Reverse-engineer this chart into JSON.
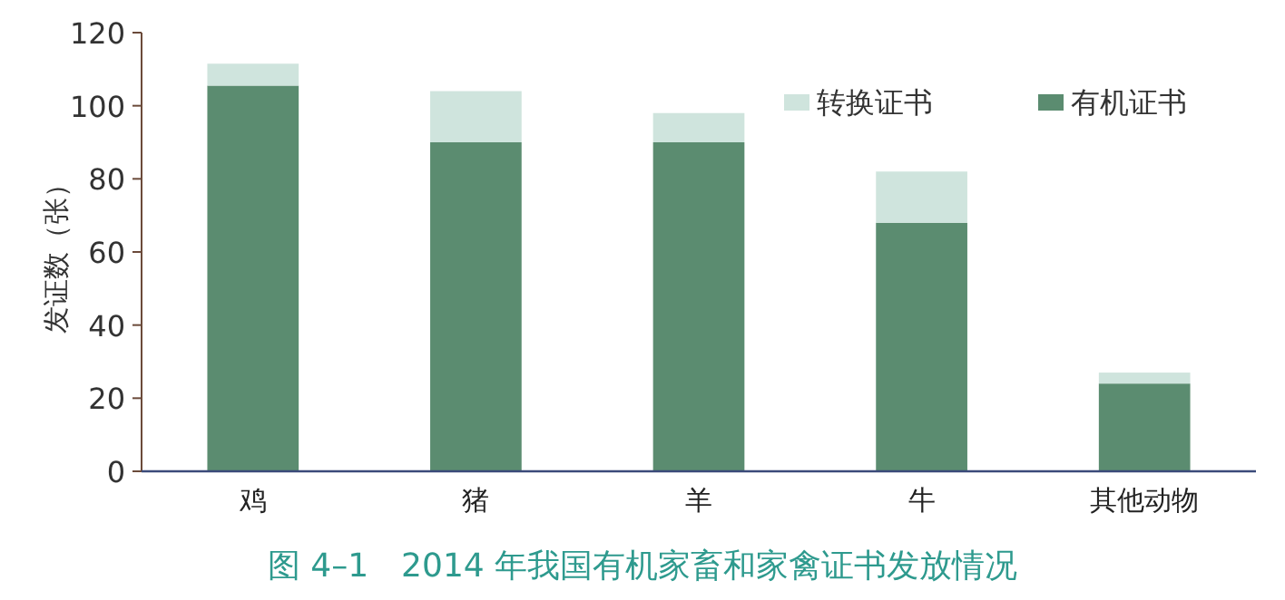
{
  "chart_data": {
    "type": "bar",
    "title": "图 4–1　2014 年我国有机家畜和家禽证书发放情况",
    "ylabel": "发证数（张）",
    "categories": [
      "鸡",
      "猪",
      "羊",
      "牛",
      "其他动物"
    ],
    "stacked": true,
    "series": [
      {
        "name": "有机证书",
        "color": "#5b8c70",
        "values": [
          105.5,
          90,
          90,
          68,
          24
        ]
      },
      {
        "name": "转换证书",
        "color": "#cfe4dd",
        "values": [
          6,
          14,
          8,
          14,
          3
        ]
      }
    ],
    "ylim": [
      0,
      120
    ],
    "yticks": [
      0,
      20,
      40,
      60,
      80,
      100,
      120
    ],
    "grid": false,
    "legend": "top right"
  }
}
